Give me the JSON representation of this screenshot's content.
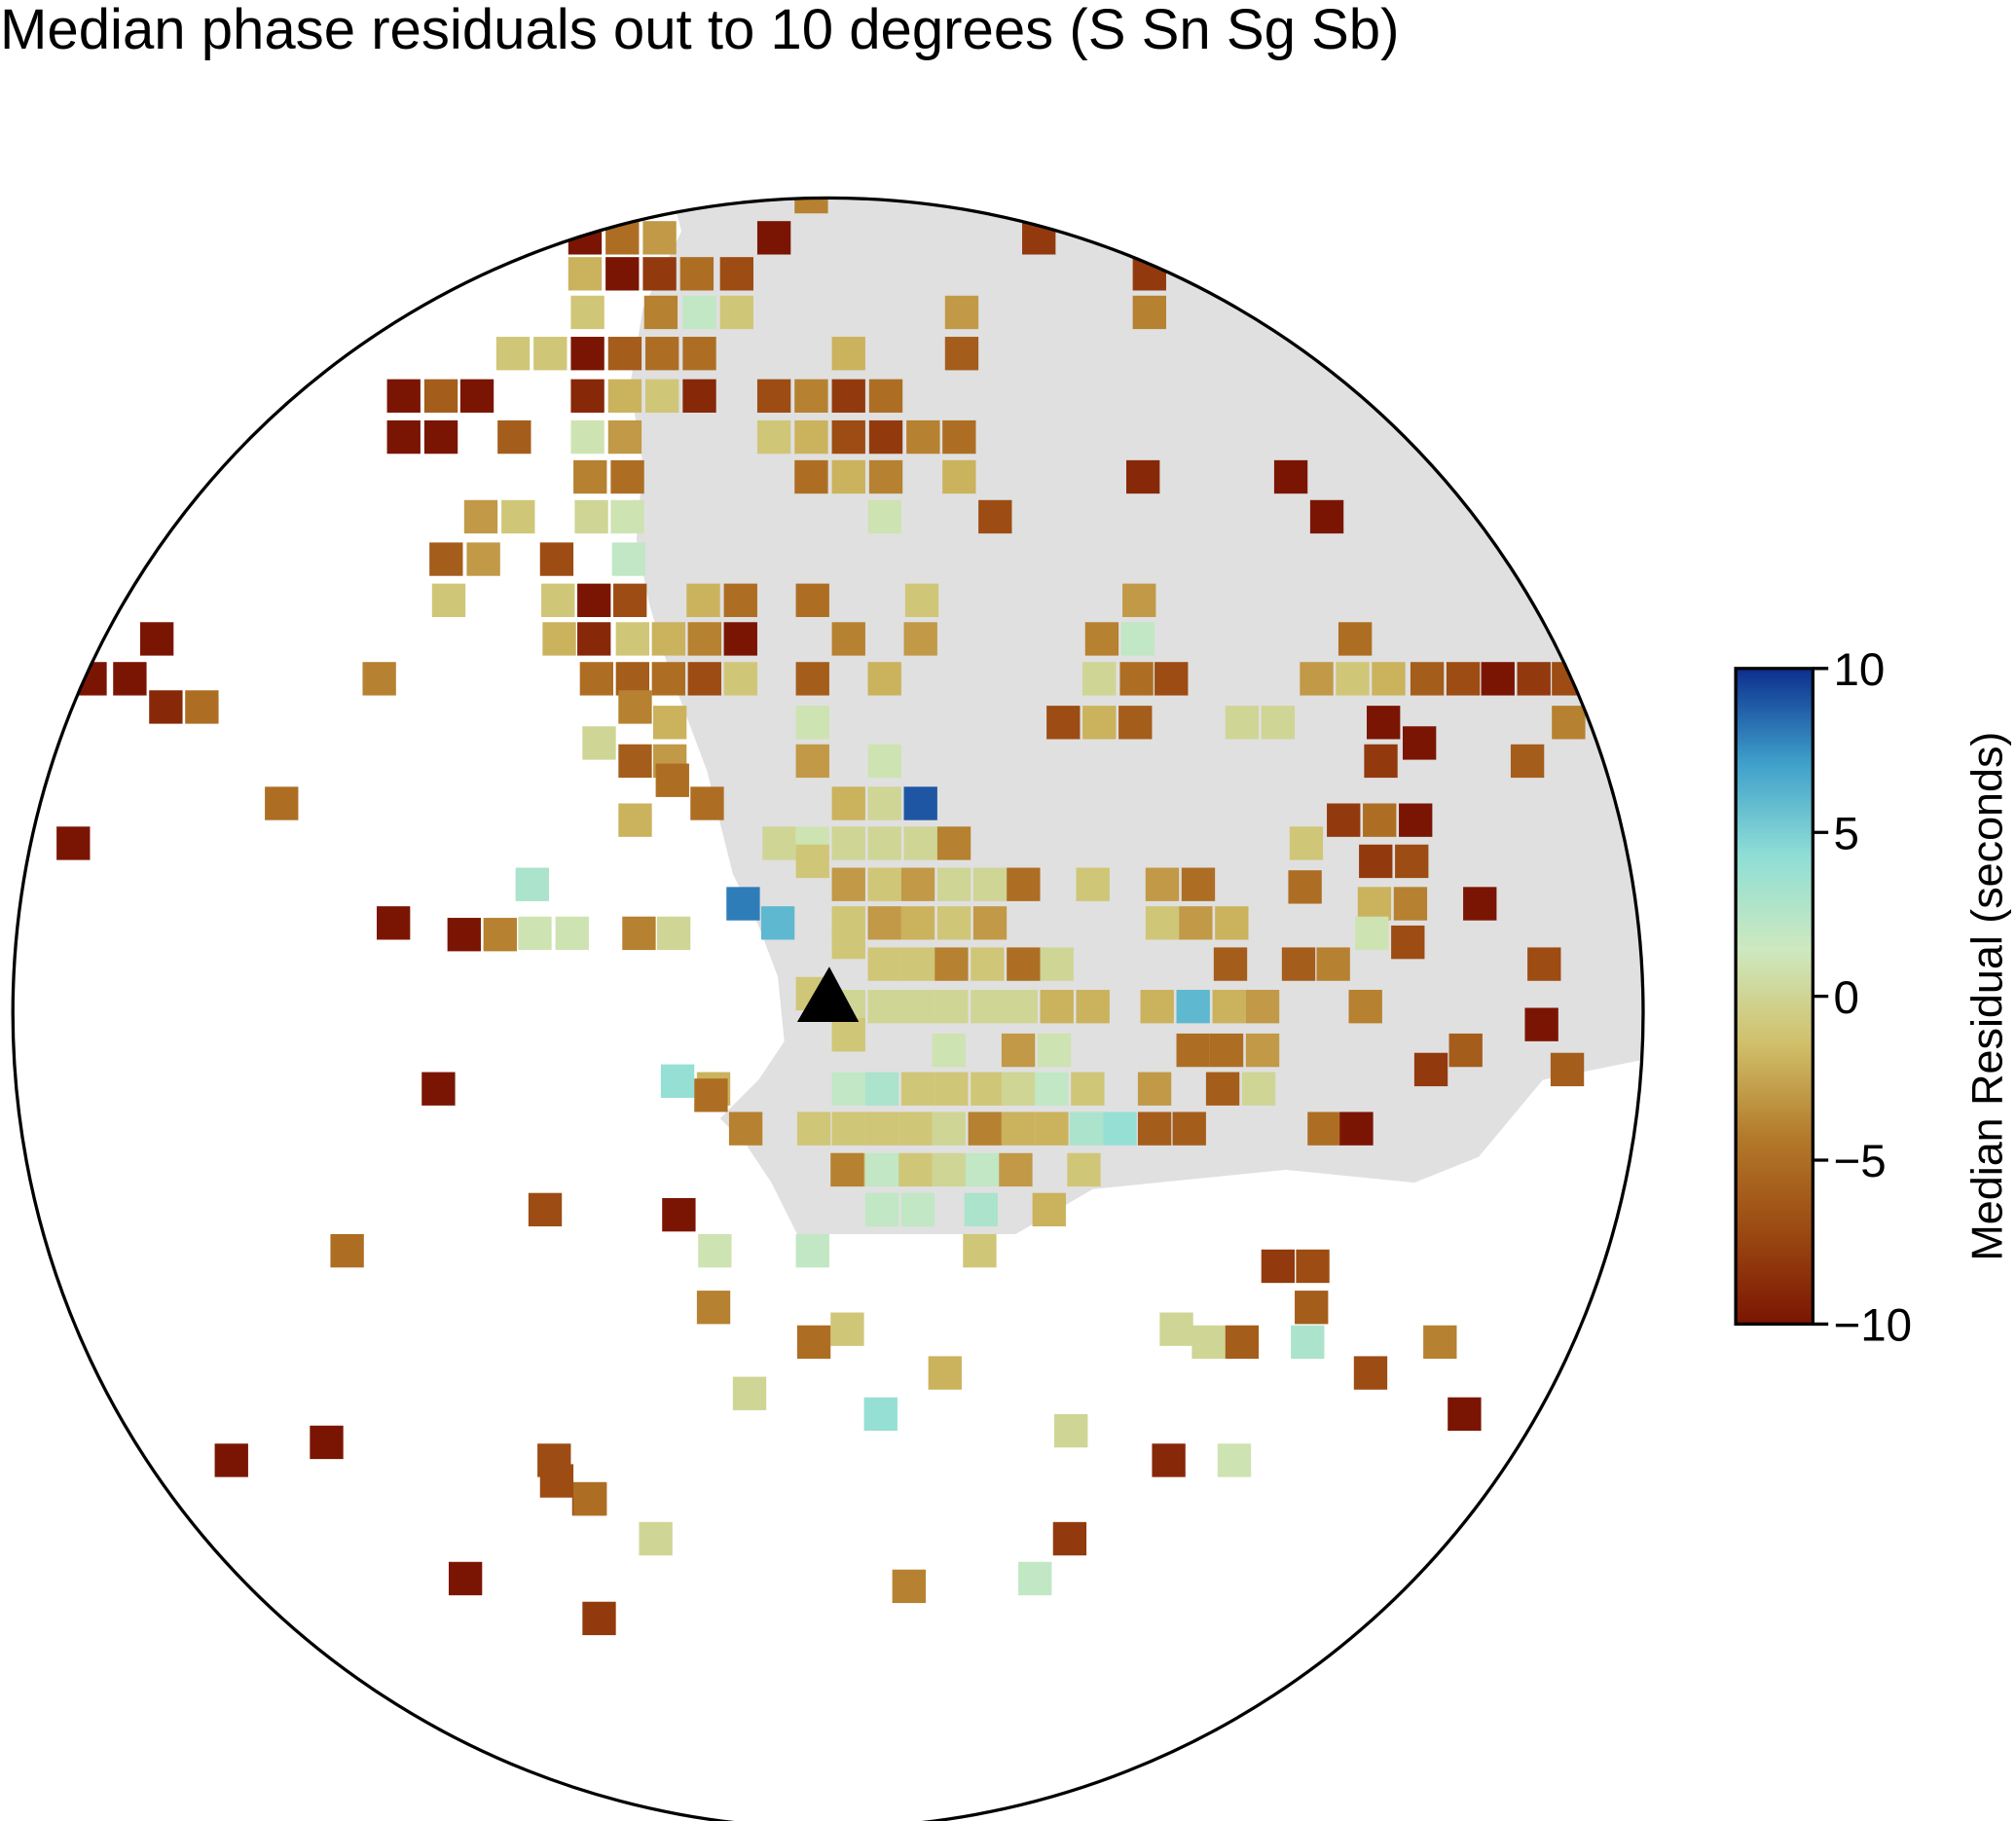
{
  "chart_data": {
    "type": "map",
    "title": "Median phase residuals out to 10 degrees (S Sn Sg Sb)",
    "colorbar_label": "Median Residual (seconds)",
    "colorbar_lim": [
      -10,
      10
    ],
    "colorbar_ticks": [
      {
        "value": -10,
        "label": "−10"
      },
      {
        "value": -5,
        "label": "−5"
      },
      0,
      5,
      10
    ],
    "colormap": [
      "#7b1503",
      "#9c4a12",
      "#b37a2a",
      "#d1c06a",
      "#cde9bf",
      "#8fded6",
      "#3e9fca",
      "#0c2e8e"
    ],
    "x": [
      631,
      455,
      484,
      513,
      602,
      808,
      455,
      484,
      513,
      542,
      573,
      894,
      457,
      514,
      544,
      573,
      748,
      894,
      399,
      428,
      457,
      486,
      515,
      544,
      660,
      748,
      314,
      343,
      371,
      457,
      486,
      515,
      544,
      602,
      631,
      660,
      689,
      314,
      343,
      400,
      457,
      486,
      602,
      631,
      660,
      689,
      718,
      746,
      459,
      488,
      631,
      660,
      689,
      746,
      889,
      1004,
      374,
      403,
      460,
      488,
      688,
      774,
      1032,
      347,
      376,
      433,
      489,
      349,
      434,
      462,
      490,
      547,
      576,
      632,
      717,
      886,
      122,
      435,
      462,
      492,
      520,
      548,
      576,
      660,
      716,
      857,
      885,
      1054,
      70,
      295,
      464,
      492,
      520,
      548,
      576,
      632,
      688,
      855,
      884,
      911,
      1024,
      1052,
      1080,
      1110,
      1138,
      1165,
      1193,
      1220,
      101,
      129,
      157,
      494,
      521,
      632,
      827,
      855,
      883,
      966,
      994,
      1220,
      1076,
      1104,
      466,
      494,
      521,
      632,
      688,
      1188,
      1074,
      523,
      550,
      660,
      688,
      716,
      219,
      1045,
      1073,
      1101,
      494,
      606,
      632,
      660,
      688,
      716,
      742,
      1016,
      57,
      1070,
      1098,
      632,
      660,
      688,
      714,
      742,
      770,
      796,
      850,
      904,
      932,
      414,
      1015,
      1069,
      1097,
      1151,
      578,
      605,
      660,
      688,
      714,
      742,
      770,
      904,
      930,
      958,
      306,
      361,
      389,
      416,
      445,
      497,
      524,
      1067,
      1095,
      660,
      688,
      714,
      740,
      768,
      796,
      822,
      957,
      1010,
      1037,
      1201,
      632,
      660,
      688,
      714,
      740,
      768,
      794,
      822,
      850,
      900,
      928,
      956,
      982,
      1062,
      1199,
      660,
      738,
      792,
      820,
      928,
      954,
      982,
      1140,
      1113,
      1219,
      527,
      555,
      660,
      686,
      714,
      740,
      768,
      792,
      818,
      846,
      898,
      951,
      979,
      341,
      553,
      633,
      660,
      686,
      712,
      738,
      766,
      792,
      818,
      845,
      871,
      898,
      925,
      1030,
      1055,
      580,
      660,
      686,
      712,
      738,
      764,
      790,
      843,
      659,
      686,
      714,
      763,
      816,
      424,
      528,
      556,
      632,
      762,
      270,
      1021,
      994,
      1020,
      555,
      659,
      915,
      940,
      966,
      1017,
      1120,
      633,
      735,
      1066,
      583,
      685,
      1139,
      254,
      833,
      909,
      960,
      431,
      180,
      433,
      458,
      459,
      832,
      510,
      805,
      362,
      707,
      466
    ],
    "y": [
      153,
      185,
      185,
      185,
      185,
      185,
      213,
      213,
      213,
      213,
      213,
      213,
      243,
      243,
      243,
      243,
      243,
      243,
      275,
      275,
      275,
      275,
      275,
      275,
      275,
      275,
      308,
      308,
      308,
      308,
      308,
      308,
      308,
      308,
      308,
      308,
      308,
      340,
      340,
      340,
      340,
      340,
      340,
      340,
      340,
      340,
      340,
      340,
      371,
      371,
      371,
      371,
      371,
      371,
      371,
      371,
      402,
      402,
      402,
      402,
      402,
      402,
      402,
      435,
      435,
      435,
      435,
      467,
      467,
      467,
      467,
      467,
      467,
      467,
      467,
      467,
      497,
      497,
      497,
      497,
      497,
      497,
      497,
      497,
      497,
      497,
      497,
      497,
      528,
      528,
      528,
      528,
      528,
      528,
      528,
      528,
      528,
      528,
      528,
      528,
      528,
      528,
      528,
      528,
      528,
      528,
      528,
      528,
      528,
      550,
      550,
      550,
      562,
      562,
      562,
      562,
      562,
      562,
      562,
      562,
      562,
      578,
      578,
      592,
      592,
      592,
      592,
      592,
      592,
      607,
      625,
      625,
      625,
      625,
      625,
      638,
      638,
      638,
      638,
      656,
      656,
      656,
      656,
      656,
      656,
      656,
      656,
      670,
      670,
      670,
      688,
      688,
      688,
      688,
      688,
      688,
      688,
      688,
      688,
      688,
      690,
      703,
      703,
      703,
      703,
      718,
      718,
      718,
      718,
      718,
      718,
      718,
      718,
      718,
      718,
      727,
      727,
      726,
      726,
      726,
      726,
      726,
      733,
      733,
      750,
      750,
      750,
      750,
      750,
      750,
      750,
      750,
      750,
      750,
      773,
      783,
      783,
      783,
      783,
      783,
      783,
      783,
      783,
      783,
      783,
      783,
      783,
      783,
      797,
      805,
      817,
      817,
      817,
      817,
      817,
      817,
      817,
      832,
      832,
      841,
      847,
      847,
      847,
      847,
      847,
      847,
      847,
      847,
      847,
      847,
      847,
      847,
      847,
      852,
      878,
      878,
      878,
      878,
      878,
      878,
      878,
      878,
      878,
      878,
      878,
      878,
      878,
      878,
      878,
      910,
      910,
      910,
      910,
      910,
      910,
      910,
      910,
      941,
      941,
      941,
      941,
      941,
      945,
      973,
      973,
      973,
      973,
      985,
      985,
      1017,
      1017,
      1034,
      1034,
      1044,
      1044,
      1044,
      1044,
      1044,
      1068,
      1068,
      1084,
      1100,
      1100,
      1122,
      1113,
      1136,
      1136,
      1136,
      1136,
      1152,
      1166,
      1166,
      1197,
      1197,
      1228,
      1228,
      1234,
      1259,
      1357
    ],
    "values": [
      -4,
      -10,
      -5,
      -3,
      -10,
      -8,
      -2,
      -10,
      -8,
      -5,
      -7,
      -8,
      -1,
      -4,
      2,
      -1,
      -3,
      -4,
      -1,
      -1,
      -10,
      -6,
      -5,
      -5,
      -2,
      -6,
      -10,
      -6,
      -10,
      -9,
      -2,
      -1,
      -9,
      -7,
      -4,
      -8,
      -5,
      -10,
      -10,
      -6,
      1,
      -3,
      -1,
      -2,
      -7,
      -8,
      -4,
      -5,
      -4,
      -5,
      -5,
      -2,
      -4,
      -2,
      -9,
      -10,
      -3,
      -1,
      0,
      1,
      1,
      -7,
      -10,
      -6,
      -3,
      -7,
      2,
      -1,
      -1,
      -10,
      -7,
      -2,
      -5,
      -5,
      -1,
      -3,
      -10,
      -2,
      -9,
      -1,
      -2,
      -4,
      -10,
      -4,
      -3,
      -4,
      2,
      -5,
      -10,
      -4,
      -5,
      -6,
      -5,
      -7,
      -1,
      -6,
      -2,
      0,
      -5,
      -7,
      -3,
      -1,
      -2,
      -6,
      -7,
      -10,
      -8,
      -7,
      -10,
      -9,
      -5,
      -4,
      -2,
      1,
      -7,
      -2,
      -6,
      0,
      0,
      -4,
      -10,
      -10,
      0,
      -6,
      -3,
      -3,
      1,
      -6,
      -8,
      -5,
      -5,
      -2,
      0,
      9,
      -5,
      -8,
      -5,
      -10,
      -2,
      0,
      1,
      0,
      0,
      0,
      -4,
      -1,
      -10,
      -8,
      -7,
      -1,
      -3,
      -1,
      -3,
      0,
      0,
      -5,
      -1,
      -3,
      -5,
      3,
      -5,
      -2,
      -4,
      -10,
      8,
      6,
      -1,
      -3,
      -2,
      -1,
      -3,
      -1,
      -3,
      -2,
      -10,
      -10,
      -4,
      1,
      1,
      -4,
      0,
      1,
      -7,
      -1,
      -1,
      -1,
      -4,
      -1,
      -5,
      0,
      -6,
      -6,
      -4,
      -7,
      -1,
      0,
      0,
      0,
      0,
      0,
      0,
      -2,
      -2,
      -2,
      6,
      -2,
      -3,
      -4,
      -10,
      -1,
      1,
      -3,
      1,
      -5,
      -5,
      -3,
      -6,
      -8,
      -6,
      4,
      -2,
      2,
      3,
      -1,
      -1,
      -1,
      0,
      2,
      -1,
      -3,
      -6,
      0,
      -10,
      -5,
      -1,
      -1,
      -1,
      -1,
      0,
      -4,
      -2,
      -2,
      3,
      4,
      -6,
      -6,
      -5,
      -10,
      -4,
      -1,
      2,
      -1,
      0,
      2,
      -3,
      -1,
      -4,
      2,
      2,
      3,
      -2,
      -7,
      -10,
      1,
      2,
      -1,
      -5,
      -7,
      -8,
      -6,
      -4,
      -1,
      0,
      0,
      -6,
      3,
      -4,
      -5,
      -2,
      -7,
      0,
      4,
      -10,
      -10,
      0,
      -9,
      1,
      -7,
      -10,
      -7,
      -7,
      -5,
      -8,
      0,
      2,
      -10,
      -4,
      -8
    ]
  }
}
